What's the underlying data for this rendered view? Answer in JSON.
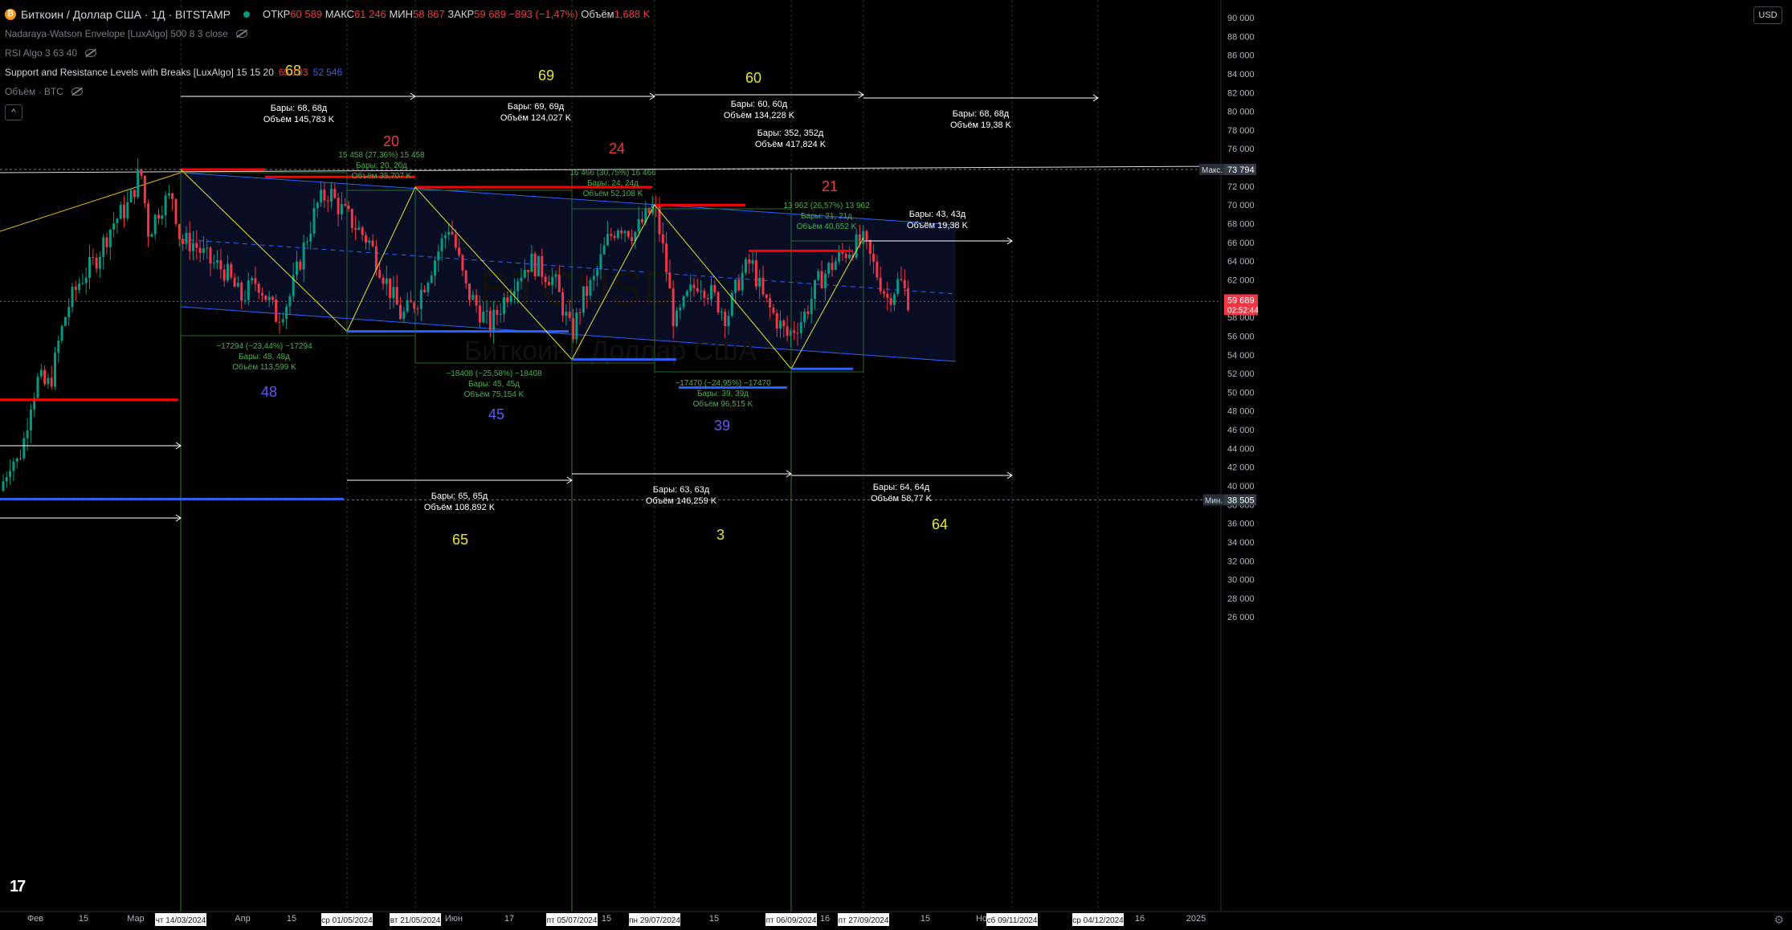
{
  "header": {
    "symbol_title": "Биткоин / Доллар США · 1Д · BITSTAMP",
    "open_label": "ОТКР",
    "open": "60 589",
    "high_label": "МАКС",
    "high": "61 246",
    "low_label": "МИН",
    "low": "58 867",
    "close_label": "ЗАКР",
    "close": "59 689",
    "change": "−893 (−1,47%)",
    "volume_label": "Объём",
    "volume": "1,688 K"
  },
  "indicators": [
    {
      "name": "Nadaraya-Watson Envelope [LuxAlgo] 500 8 3 close"
    },
    {
      "name": "RSI Algo 3 63 40"
    },
    {
      "name": "Support and Resistance Levels with Breaks [LuxAlgo] 15 15 20",
      "v1": "65 103",
      "v2": "52 546"
    },
    {
      "name": "Объём · BTC"
    }
  ],
  "collapse_label": "^",
  "currency": "USD",
  "settings_icon": "gear-icon",
  "price_axis": {
    "ticks": [
      "90 000",
      "88 000",
      "86 000",
      "84 000",
      "82 000",
      "80 000",
      "78 000",
      "76 000",
      "74 000",
      "72 000",
      "70 000",
      "68 000",
      "66 000",
      "64 000",
      "62 000",
      "60 000",
      "58 000",
      "56 000",
      "54 000",
      "52 000",
      "50 000",
      "48 000",
      "46 000",
      "44 000",
      "42 000",
      "40 000",
      "38 000",
      "36 000",
      "34 000",
      "32 000",
      "30 000",
      "28 000",
      "26 000"
    ],
    "max_label": "Макс.",
    "max_value": "73 794",
    "min_label": "Мин.",
    "min_value": "38 505",
    "last_price": "59 689",
    "countdown": "02:52:44",
    "last_price_color": "#f23645"
  },
  "time_axis": {
    "labels": [
      "Фев",
      "15",
      "Мар",
      "Апр",
      "15",
      "Июн",
      "17",
      "15",
      "15",
      "16",
      "15",
      "Но",
      "16",
      "2025"
    ],
    "highlighted": [
      "чт 14/03/2024",
      "ср 01/05/2024",
      "вт 21/05/2024",
      "пт 05/07/2024",
      "пн 29/07/2024",
      "пт 06/09/2024",
      "пт 27/09/2024",
      "сб 09/11/2024",
      "ср 04/12/2024"
    ]
  },
  "cycle_numbers": [
    {
      "text": "68",
      "color": "#e6e62e"
    },
    {
      "text": "69",
      "color": "#e6e62e"
    },
    {
      "text": "60",
      "color": "#e6e62e"
    },
    {
      "text": "20",
      "color": "#f23645"
    },
    {
      "text": "24",
      "color": "#f23645"
    },
    {
      "text": "21",
      "color": "#f23645"
    },
    {
      "text": "48",
      "color": "#5b5bf5"
    },
    {
      "text": "45",
      "color": "#5b5bf5"
    },
    {
      "text": "39",
      "color": "#5b5bf5"
    },
    {
      "text": "65",
      "color": "#e6e62e"
    },
    {
      "text": "3",
      "color": "#e6e62e"
    },
    {
      "text": "64",
      "color": "#e6e62e"
    }
  ],
  "range_labels": [
    {
      "l1": "Бары: 68, 68д",
      "l2": "Объём 145,783 K"
    },
    {
      "l1": "Бары: 69, 69д",
      "l2": "Объём 124,027 K"
    },
    {
      "l1": "Бары: 60, 60д",
      "l2": "Объём 134,228 K"
    },
    {
      "l1": "Бары: 68, 68д",
      "l2": "Объём 19,38 K"
    },
    {
      "l1": "Бары: 352, 352д",
      "l2": "Объём 417,824 K"
    },
    {
      "l1": "Бары: 43, 43д",
      "l2": "Объём 19,38 K"
    },
    {
      "l1": "Бары: 65, 65д",
      "l2": "Объём 108,892 K"
    },
    {
      "l1": "Бары: 63, 63д",
      "l2": "Объём 146,259 K"
    },
    {
      "l1": "Бары: 64, 64д",
      "l2": "Объём 58,77 K"
    }
  ],
  "measure_labels": [
    {
      "l1": "15 458 (27,36%) 15 458",
      "l2": "Бары: 20, 20д",
      "l3": "Объём 35,707 K"
    },
    {
      "l1": "16 466 (30,75%) 16 466",
      "l2": "Бары: 24, 24д",
      "l3": "Объём 52,108 K"
    },
    {
      "l1": "13 962 (26,57%) 13 962",
      "l2": "Бары: 21, 21д",
      "l3": "Объём 40,652 K"
    },
    {
      "l1": "−17294 (−23,44%) −17294",
      "l2": "Бары: 48, 48д",
      "l3": "Объём 113,599 K"
    },
    {
      "l1": "−18408 (−25,58%) −18408",
      "l2": "Бары: 45, 45д",
      "l3": "Объём 75,154 K"
    },
    {
      "l1": "−17470 (−24,95%) −17470",
      "l2": "Бары: 39, 39д",
      "l3": "Объём 96,515 K"
    }
  ],
  "watermark": {
    "top": "BTCUSD",
    "bottom": "Биткоин / Доллар США"
  },
  "tv_logo": "17",
  "colors": {
    "up": "#089981",
    "down": "#f23645",
    "resistance": "#ff0000",
    "support": "#2962ff",
    "zigzag": "#e6e62e",
    "range": "#ffffff",
    "envelope": "#2962ff"
  }
}
